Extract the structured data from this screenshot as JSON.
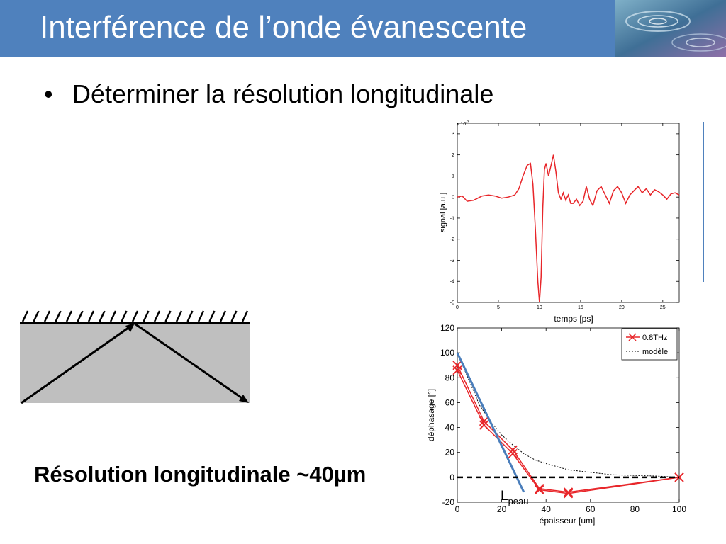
{
  "slide": {
    "title": "Interférence de l’onde évanescente",
    "bullet": "Déterminer la résolution longitudinale",
    "conclusion": "Résolution longitudinale ~40µm",
    "accent": "#4f81bd"
  },
  "chart_data": [
    {
      "type": "line",
      "title": "",
      "xlabel": "temps [ps]",
      "ylabel": "signal [a.u.]",
      "y_multiplier": "x 10",
      "y_multiplier_exp": "-3",
      "xlim": [
        0,
        27
      ],
      "ylim": [
        -5,
        3.5
      ],
      "x_ticks": [
        0,
        5,
        10,
        15,
        20,
        25
      ],
      "y_ticks": [
        -5,
        -4,
        -3,
        -2,
        -1,
        0,
        1,
        2,
        3
      ],
      "grid": false,
      "series": [
        {
          "color": "#e8262a",
          "x": [
            0,
            0.6,
            1.2,
            2,
            3,
            3.8,
            4.6,
            5.4,
            6.2,
            7,
            7.5,
            8,
            8.5,
            8.9,
            9.2,
            9.5,
            9.8,
            10,
            10.2,
            10.4,
            10.6,
            10.8,
            11.1,
            11.4,
            11.7,
            12,
            12.3,
            12.6,
            12.9,
            13.2,
            13.5,
            13.8,
            14.1,
            14.5,
            14.9,
            15.3,
            15.7,
            16.1,
            16.5,
            17,
            17.5,
            18,
            18.5,
            19,
            19.5,
            20,
            20.5,
            21,
            21.5,
            22,
            22.5,
            23,
            23.5,
            24,
            24.5,
            25,
            25.5,
            26,
            26.5,
            27
          ],
          "y": [
            0,
            0.05,
            -0.2,
            -0.15,
            0.05,
            0.1,
            0.05,
            -0.05,
            0,
            0.1,
            0.4,
            1.0,
            1.5,
            1.6,
            0.6,
            -1.5,
            -4.0,
            -5.0,
            -3.8,
            -0.5,
            1.3,
            1.6,
            1.0,
            1.5,
            2.0,
            1.2,
            0.2,
            -0.1,
            0.2,
            -0.15,
            0.1,
            -0.3,
            -0.3,
            -0.1,
            -0.4,
            -0.2,
            0.5,
            -0.1,
            -0.4,
            0.3,
            0.5,
            0.1,
            -0.3,
            0.3,
            0.5,
            0.2,
            -0.3,
            0.1,
            0.3,
            0.5,
            0.2,
            0.4,
            0.1,
            0.35,
            0.25,
            0.1,
            -0.1,
            0.15,
            0.2,
            0.1
          ]
        }
      ]
    },
    {
      "type": "line",
      "title": "",
      "xlabel": "épaisseur [um]",
      "ylabel": "déphasage [°]",
      "xlim": [
        0,
        100
      ],
      "ylim": [
        -20,
        120
      ],
      "x_ticks": [
        0,
        20,
        40,
        60,
        80,
        100
      ],
      "y_ticks": [
        -20,
        0,
        20,
        40,
        60,
        80,
        100,
        120
      ],
      "grid": false,
      "legend": "top-right",
      "annotation": "L",
      "annotation_sub": "peau",
      "series": [
        {
          "name": "0.8THz",
          "color": "#e8262a",
          "marker": "x",
          "x": [
            0,
            12,
            25,
            37,
            50,
            100
          ],
          "y": [
            90,
            45,
            22,
            -9,
            -12,
            0
          ]
        },
        {
          "color": "#e8262a",
          "marker": "x",
          "x": [
            0,
            12,
            25,
            37,
            50,
            100
          ],
          "y": [
            86,
            42,
            19,
            -10,
            -13,
            0
          ]
        },
        {
          "name": "modèle",
          "color": "#000000",
          "style": "dotted",
          "x": [
            0,
            5,
            10,
            15,
            20,
            25,
            30,
            35,
            40,
            50,
            60,
            70,
            80,
            90,
            100
          ],
          "y": [
            100,
            79,
            58,
            45,
            34,
            26,
            19,
            14,
            11,
            6,
            4,
            2,
            1.5,
            1,
            0
          ]
        },
        {
          "color": "#4a7ebb",
          "x": [
            0,
            30
          ],
          "y": [
            100,
            -12
          ]
        },
        {
          "color": "#000000",
          "style": "dashed",
          "x": [
            0,
            100
          ],
          "y": [
            0,
            0
          ]
        }
      ]
    }
  ]
}
